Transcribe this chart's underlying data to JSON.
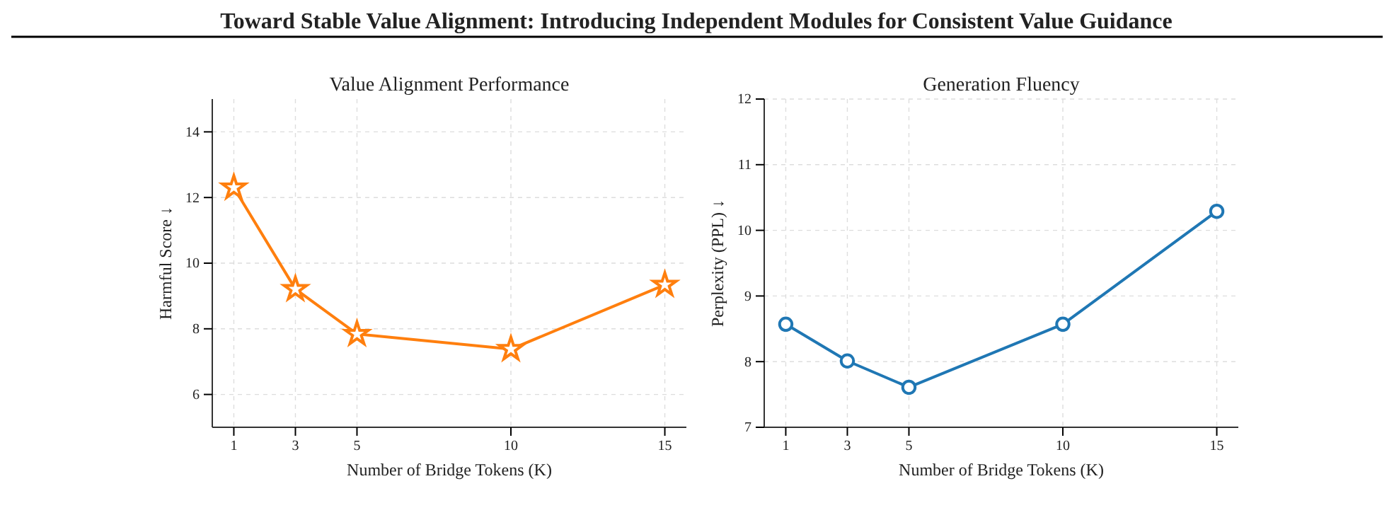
{
  "chart_data": [
    {
      "type": "line",
      "title": "Value Alignment Performance",
      "xlabel": "Number of Bridge Tokens (K)",
      "ylabel": "Harmful Score ↓",
      "annotations": [
        "Toward Stable Value Alignment: Introducing Independent Modules for Consistent Value Guidance"
      ],
      "x": [
        1,
        3,
        5,
        10,
        15
      ],
      "series": [
        {
          "color": "#ff7f0e",
          "values": [
            12.3,
            9.21,
            7.84,
            7.38,
            9.34
          ]
        }
      ],
      "xlim": [
        0.3,
        15.7
      ],
      "xticks": [
        1,
        3,
        5,
        10,
        15
      ],
      "ylim": [
        5,
        15
      ],
      "yticks": [
        6,
        8,
        10,
        12,
        14
      ],
      "grid": true,
      "marker": "star",
      "line_style": "solid"
    },
    {
      "type": "line",
      "title": "Generation Fluency",
      "xlabel": "Number of Bridge Tokens (K)",
      "ylabel": "Perplexity (PPL) ↓",
      "x": [
        1,
        3,
        5,
        10,
        15
      ],
      "series": [
        {
          "color": "#1f77b4",
          "values": [
            8.57,
            8.01,
            7.61,
            8.57,
            10.29
          ]
        }
      ],
      "xlim": [
        0.3,
        15.7
      ],
      "xticks": [
        1,
        3,
        5,
        10,
        15
      ],
      "ylim": [
        7,
        12
      ],
      "yticks": [
        7,
        8,
        9,
        10,
        11,
        12
      ],
      "grid": true,
      "marker": "circle",
      "line_style": "solid"
    }
  ]
}
